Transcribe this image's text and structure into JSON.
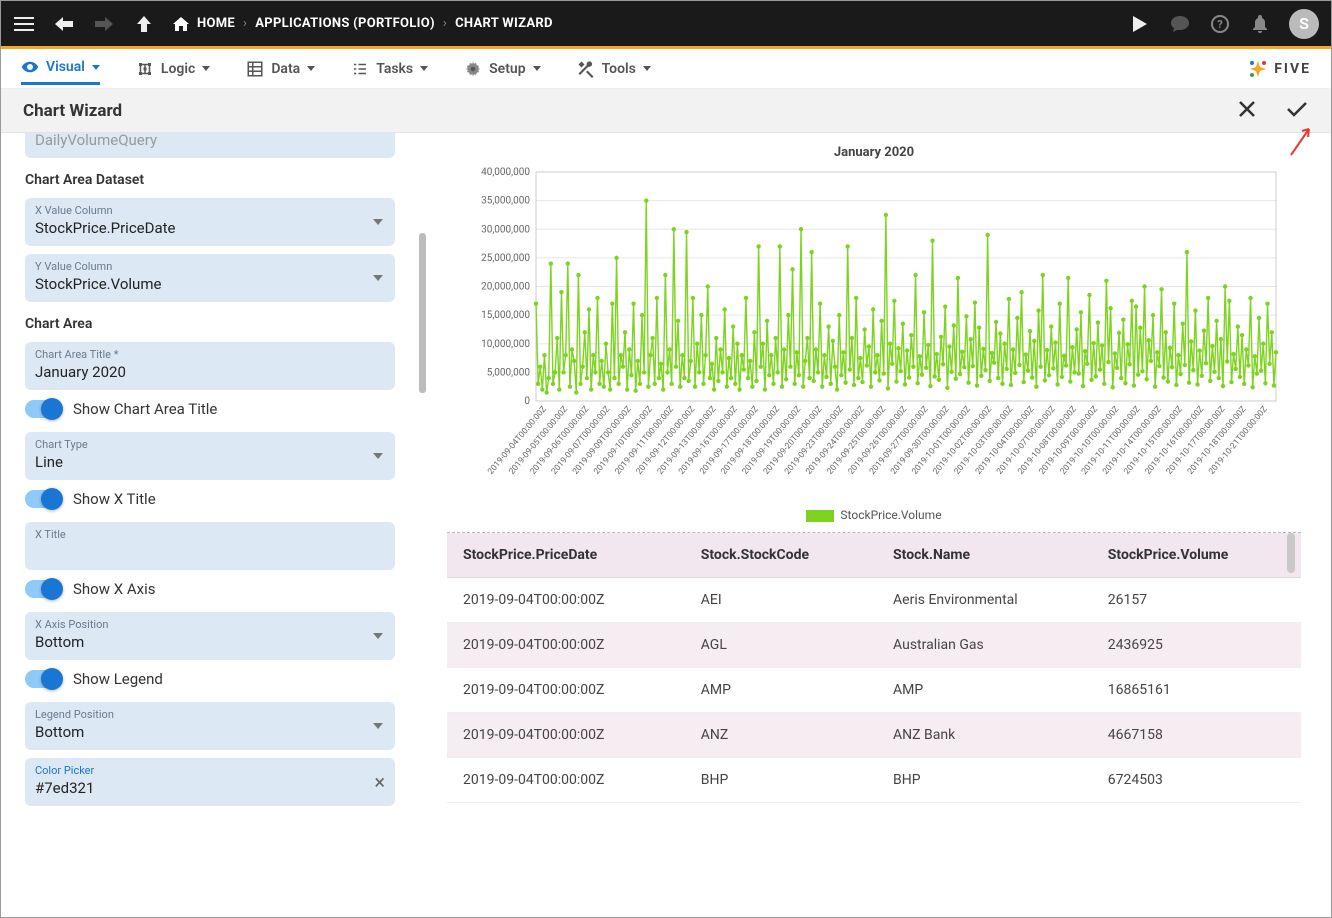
{
  "topbar": {
    "crumbs": [
      "HOME",
      "APPLICATIONS (PORTFOLIO)",
      "CHART WIZARD"
    ],
    "avatar_initial": "S"
  },
  "menubar": {
    "items": [
      {
        "label": "Visual",
        "active": true
      },
      {
        "label": "Logic",
        "active": false
      },
      {
        "label": "Data",
        "active": false
      },
      {
        "label": "Tasks",
        "active": false
      },
      {
        "label": "Setup",
        "active": false
      },
      {
        "label": "Tools",
        "active": false
      }
    ],
    "brand": "FIVE"
  },
  "titlebar": {
    "title": "Chart Wizard"
  },
  "sidebar": {
    "top_field_value": "DailyVolumeQuery",
    "section_dataset": "Chart Area Dataset",
    "x_col_label": "X Value Column",
    "x_col_value": "StockPrice.PriceDate",
    "y_col_label": "Y Value Column",
    "y_col_value": "StockPrice.Volume",
    "section_area": "Chart Area",
    "area_title_label": "Chart Area Title *",
    "area_title_value": "January 2020",
    "toggle_show_title": "Show Chart Area Title",
    "chart_type_label": "Chart Type",
    "chart_type_value": "Line",
    "toggle_show_xtitle": "Show X Title",
    "x_title_label": "X Title",
    "x_title_value": "",
    "toggle_show_xaxis": "Show X Axis",
    "x_axis_pos_label": "X Axis Position",
    "x_axis_pos_value": "Bottom",
    "toggle_show_legend": "Show Legend",
    "legend_pos_label": "Legend Position",
    "legend_pos_value": "Bottom",
    "color_label": "Color Picker",
    "color_value": "#7ed321"
  },
  "chart": {
    "type": "line",
    "title": "January 2020",
    "series_name": "StockPrice.Volume",
    "series_color": "#7ed321",
    "marker_color": "#7ed321",
    "marker_size": 2.2,
    "line_width": 1.4,
    "background_color": "#ffffff",
    "grid_color": "#e6e6e6",
    "axis_font_size": 10,
    "y_ticks": [
      0,
      5000000,
      10000000,
      15000000,
      20000000,
      25000000,
      30000000,
      35000000,
      40000000
    ],
    "y_tick_labels": [
      "0",
      "5,000,000",
      "10,000,000",
      "15,000,000",
      "20,000,000",
      "25,000,000",
      "30,000,000",
      "35,000,000",
      "40,000,000"
    ],
    "ylim_max": 40000000,
    "x_labels": [
      "2019-09-04T00:00:00Z",
      "2019-09-05T00:00:00Z",
      "2019-09-06T00:00:00Z",
      "2019-09-07T00:00:00Z",
      "2019-09-09T00:00:00Z",
      "2019-09-10T00:00:00Z",
      "2019-09-11T00:00:00Z",
      "2019-09-12T00:00:00Z",
      "2019-09-13T00:00:00Z",
      "2019-09-16T00:00:00Z",
      "2019-09-17T00:00:00Z",
      "2019-09-18T00:00:00Z",
      "2019-09-19T00:00:00Z",
      "2019-09-20T00:00:00Z",
      "2019-09-23T00:00:00Z",
      "2019-09-24T00:00:00Z",
      "2019-09-25T00:00:00Z",
      "2019-09-26T00:00:00Z",
      "2019-09-27T00:00:00Z",
      "2019-09-30T00:00:00Z",
      "2019-10-01T00:00:00Z",
      "2019-10-02T00:00:00Z",
      "2019-10-03T00:00:00Z",
      "2019-10-04T00:00:00Z",
      "2019-10-07T00:00:00Z",
      "2019-10-08T00:00:00Z",
      "2019-10-09T00:00:00Z",
      "2019-10-10T00:00:00Z",
      "2019-10-11T00:00:00Z",
      "2019-10-14T00:00:00Z",
      "2019-10-15T00:00:00Z",
      "2019-10-16T00:00:00Z",
      "2019-10-17T00:00:00Z",
      "2019-10-18T00:00:00Z",
      "2019-10-21T00:00:00Z"
    ],
    "groups_per_label": 10,
    "values": [
      17000000,
      3000000,
      6000000,
      2000000,
      8000000,
      1500000,
      4000000,
      24000000,
      3000000,
      5000000,
      11000000,
      2000000,
      19000000,
      5000000,
      8000000,
      24000000,
      2500000,
      9000000,
      7000000,
      1500000,
      22000000,
      3000000,
      6000000,
      12000000,
      4000000,
      16000000,
      2000000,
      8000000,
      5000000,
      18000000,
      3000000,
      7000000,
      2500000,
      10000000,
      5000000,
      2000000,
      17000000,
      4000000,
      25000000,
      3000000,
      8000000,
      6000000,
      12000000,
      2000000,
      9000000,
      4500000,
      17000000,
      1800000,
      7000000,
      3000000,
      15000000,
      5000000,
      35000000,
      2500000,
      8000000,
      11000000,
      3000000,
      18000000,
      4000000,
      6500000,
      2000000,
      22000000,
      5000000,
      9000000,
      3000000,
      30000000,
      6000000,
      14000000,
      2500000,
      8000000,
      4000000,
      29500000,
      3500000,
      7000000,
      18000000,
      2500000,
      10000000,
      5000000,
      15000000,
      3000000,
      8000000,
      20000000,
      4000000,
      6500000,
      2000000,
      11000000,
      3500000,
      9000000,
      5000000,
      16000000,
      2500000,
      7500000,
      4000000,
      13000000,
      3000000,
      10000000,
      2000000,
      8000000,
      5500000,
      18000000,
      4000000,
      7000000,
      2500000,
      12000000,
      3500000,
      27000000,
      6000000,
      10000000,
      2000000,
      14000000,
      4500000,
      8000000,
      3000000,
      11000000,
      5000000,
      27000000,
      2500000,
      9000000,
      3800000,
      15000000,
      6000000,
      23000000,
      3000000,
      8500000,
      4500000,
      30000000,
      2500000,
      7000000,
      11000000,
      4000000,
      26000000,
      3500000,
      9000000,
      5000000,
      17000000,
      2500000,
      8000000,
      4200000,
      13000000,
      3000000,
      10500000,
      6000000,
      2000000,
      15000000,
      4500000,
      8500000,
      3200000,
      27000000,
      5500000,
      11000000,
      2800000,
      18000000,
      4000000,
      7500000,
      3300000,
      12500000,
      6200000,
      9500000,
      2500000,
      16000000,
      5000000,
      8000000,
      3600000,
      14000000,
      4800000,
      32500000,
      2200000,
      10000000,
      6500000,
      17500000,
      3400000,
      9200000,
      5200000,
      13500000,
      2900000,
      8800000,
      4100000,
      11500000,
      6000000,
      22000000,
      3100000,
      7800000,
      4600000,
      15500000,
      5800000,
      9800000,
      2600000,
      28000000,
      4300000,
      8200000,
      3700000,
      11200000,
      6400000,
      16500000,
      2300000,
      9500000,
      5100000,
      13200000,
      3900000,
      21500000,
      4700000,
      8600000,
      5900000,
      14800000,
      3200000,
      10800000,
      6100000,
      17200000,
      2700000,
      12800000,
      4400000,
      9100000,
      5400000,
      29000000,
      3500000,
      8400000,
      6700000,
      13800000,
      4000000,
      11800000,
      3000000,
      10000000,
      5600000,
      17800000,
      2800000,
      9000000,
      4900000,
      14500000,
      6300000,
      19000000,
      3300000,
      8100000,
      5300000,
      12200000,
      4100000,
      10500000,
      2500000,
      15800000,
      6000000,
      22000000,
      3600000,
      8900000,
      4500000,
      13000000,
      5700000,
      10200000,
      2900000,
      17000000,
      4200000,
      7900000,
      6200000,
      21500000,
      3400000,
      9400000,
      5000000,
      12500000,
      4800000,
      15500000,
      2600000,
      8700000,
      6500000,
      18500000,
      3700000,
      10100000,
      4300000,
      13700000,
      5500000,
      9700000,
      3000000,
      21000000,
      6800000,
      16200000,
      2400000,
      8300000,
      5800000,
      11900000,
      4000000,
      14200000,
      3100000,
      9900000,
      6400000,
      17500000,
      2700000,
      16500000,
      4600000,
      12800000,
      5200000,
      20000000,
      3800000,
      10600000,
      7000000,
      15000000,
      2500000,
      8500000,
      6100000,
      19500000,
      4100000,
      12000000,
      3400000,
      9300000,
      5900000,
      17000000,
      2800000,
      8000000,
      4700000,
      13500000,
      6300000,
      26000000,
      3200000,
      10400000,
      5400000,
      15800000,
      2900000,
      8800000,
      4400000,
      12300000,
      6600000,
      18000000,
      3500000,
      9600000,
      5100000,
      14000000,
      4000000,
      10800000,
      2600000,
      20000000,
      6900000,
      17500000,
      3300000,
      8200000,
      5600000,
      13000000,
      4200000,
      11500000,
      3000000,
      9000000,
      6200000,
      18000000,
      2400000,
      7800000,
      4800000,
      14500000,
      5300000,
      10000000,
      3100000,
      17000000,
      6500000,
      12000000,
      2700000,
      8500000
    ]
  },
  "table": {
    "columns": [
      "StockPrice.PriceDate",
      "Stock.StockCode",
      "Stock.Name",
      "StockPrice.Volume"
    ],
    "rows": [
      [
        "2019-09-04T00:00:00Z",
        "AEI",
        "Aeris Environmental",
        "26157"
      ],
      [
        "2019-09-04T00:00:00Z",
        "AGL",
        "Australian Gas",
        "2436925"
      ],
      [
        "2019-09-04T00:00:00Z",
        "AMP",
        "AMP",
        "16865161"
      ],
      [
        "2019-09-04T00:00:00Z",
        "ANZ",
        "ANZ Bank",
        "4667158"
      ],
      [
        "2019-09-04T00:00:00Z",
        "BHP",
        "BHP",
        "6724503"
      ]
    ]
  }
}
